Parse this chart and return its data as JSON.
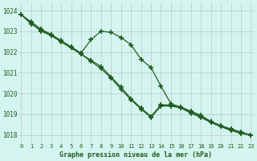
{
  "title": "Graphe pression niveau de la mer (hPa)",
  "background_color": "#d4f5ef",
  "grid_color": "#b8b8b8",
  "line_color": "#1f5c1f",
  "hours": [
    0,
    1,
    2,
    3,
    4,
    5,
    6,
    7,
    8,
    9,
    10,
    11,
    12,
    13,
    14,
    15,
    16,
    17,
    18,
    19,
    20,
    21,
    22,
    23
  ],
  "line1": [
    1023.8,
    1023.45,
    1023.1,
    1022.85,
    1022.55,
    1022.25,
    1021.95,
    1022.6,
    1023.0,
    1022.95,
    1022.7,
    1022.35,
    1021.65,
    1021.25,
    1020.35,
    1019.5,
    1019.35,
    1019.15,
    1018.95,
    1018.65,
    1018.45,
    1018.3,
    1018.15,
    1018.0
  ],
  "line2": [
    1023.8,
    1023.4,
    1023.0,
    1022.8,
    1022.5,
    1022.2,
    1021.9,
    1021.6,
    1021.3,
    1020.8,
    1020.3,
    1019.75,
    1019.3,
    1018.9,
    1019.45,
    1019.45,
    1019.35,
    1019.1,
    1018.9,
    1018.65,
    1018.45,
    1018.25,
    1018.1,
    1018.0
  ],
  "line3": [
    1023.8,
    1023.35,
    1023.05,
    1022.8,
    1022.5,
    1022.2,
    1021.9,
    1021.55,
    1021.2,
    1020.75,
    1020.2,
    1019.7,
    1019.25,
    1018.85,
    1019.4,
    1019.4,
    1019.3,
    1019.05,
    1018.85,
    1018.6,
    1018.4,
    1018.22,
    1018.08,
    1018.0
  ],
  "ylim": [
    1017.6,
    1024.4
  ],
  "yticks": [
    1018,
    1019,
    1020,
    1021,
    1022,
    1023,
    1024
  ],
  "xlim": [
    -0.3,
    23.3
  ],
  "marker": "+",
  "marker_size": 5
}
